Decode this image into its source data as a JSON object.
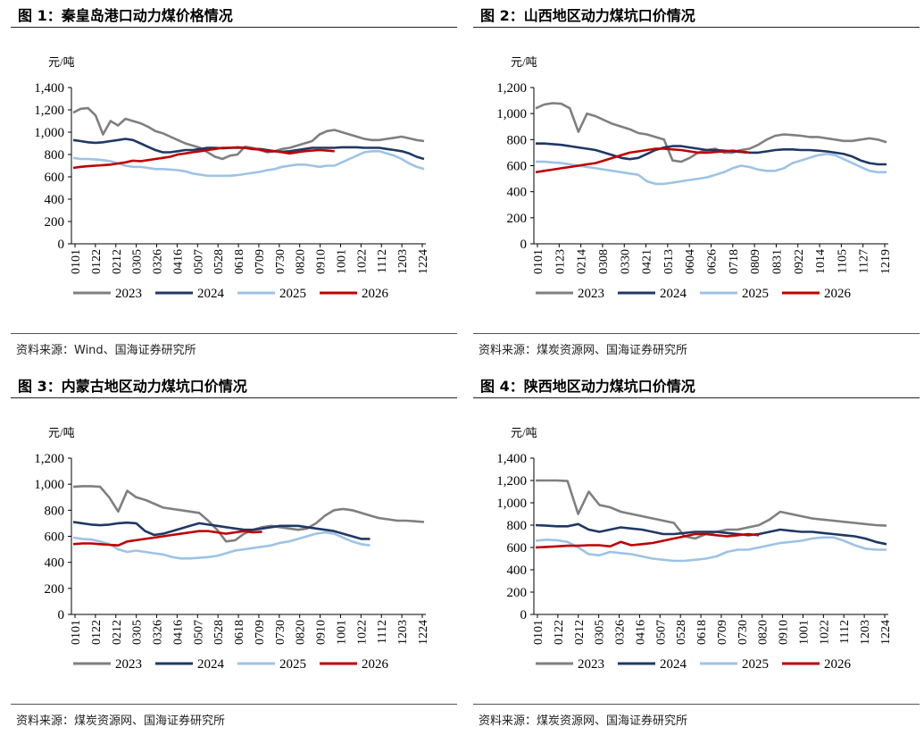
{
  "panels": [
    {
      "title": "图 1：秦皇岛港口动力煤价格情况",
      "source": "资料来源：Wind、国海证券研究所",
      "chart_data": {
        "type": "line",
        "unit": "元/吨",
        "ylim": [
          0,
          1400
        ],
        "yticks": [
          "0",
          "200",
          "400",
          "600",
          "800",
          "1,000",
          "1,200",
          "1,400"
        ],
        "x_labels": [
          "0101",
          "0122",
          "0212",
          "0305",
          "0326",
          "0416",
          "0507",
          "0528",
          "0618",
          "0709",
          "0730",
          "0820",
          "0910",
          "1001",
          "1022",
          "1112",
          "1203",
          "1224"
        ],
        "legend_position": "bottom",
        "series": [
          {
            "name": "2023",
            "color": "#7f7f7f",
            "values": [
              1175,
              1210,
              1215,
              1150,
              980,
              1100,
              1060,
              1120,
              1100,
              1080,
              1050,
              1010,
              990,
              960,
              930,
              900,
              880,
              860,
              820,
              780,
              760,
              790,
              800,
              870,
              860,
              840,
              820,
              830,
              850,
              860,
              880,
              900,
              920,
              980,
              1010,
              1020,
              1000,
              980,
              960,
              940,
              930,
              930,
              940,
              950,
              960,
              945,
              930,
              920
            ]
          },
          {
            "name": "2024",
            "color": "#1f3864",
            "values": [
              930,
              920,
              910,
              905,
              910,
              920,
              930,
              940,
              930,
              900,
              870,
              840,
              820,
              820,
              830,
              840,
              840,
              850,
              860,
              860,
              855,
              860,
              860,
              860,
              850,
              850,
              840,
              830,
              825,
              830,
              840,
              850,
              860,
              860,
              860,
              860,
              865,
              865,
              865,
              860,
              860,
              860,
              850,
              840,
              830,
              810,
              780,
              760
            ]
          },
          {
            "name": "2025",
            "color": "#9dc3e6",
            "values": [
              770,
              760,
              760,
              755,
              750,
              740,
              720,
              700,
              690,
              690,
              680,
              670,
              670,
              665,
              660,
              650,
              630,
              620,
              610,
              610,
              610,
              610,
              615,
              625,
              635,
              645,
              660,
              670,
              690,
              700,
              710,
              710,
              700,
              690,
              700,
              700,
              730,
              760,
              790,
              820,
              830,
              830,
              810,
              790,
              760,
              720,
              690,
              670
            ]
          },
          {
            "name": "2026",
            "color": "#c00000",
            "values": [
              680,
              690,
              695,
              700,
              705,
              710,
              720,
              730,
              745,
              740,
              750,
              760,
              770,
              780,
              800,
              810,
              820,
              830,
              840,
              850,
              860,
              860,
              865,
              860,
              850,
              845,
              830,
              830,
              820,
              810,
              820,
              830,
              835,
              840,
              835,
              830
            ]
          }
        ]
      }
    },
    {
      "title": "图 2：山西地区动力煤坑口价情况",
      "source": "资料来源：煤炭资源网、国海证券研究所",
      "chart_data": {
        "type": "line",
        "unit": "元/吨",
        "ylim": [
          0,
          1200
        ],
        "yticks": [
          "0",
          "200",
          "400",
          "600",
          "800",
          "1,000",
          "1,200"
        ],
        "x_labels": [
          "0101",
          "0123",
          "0214",
          "0308",
          "0330",
          "0421",
          "0513",
          "0604",
          "0626",
          "0718",
          "0809",
          "0831",
          "0922",
          "1014",
          "1105",
          "1127",
          "1219"
        ],
        "legend_position": "bottom",
        "series": [
          {
            "name": "2023",
            "color": "#7f7f7f",
            "values": [
              1040,
              1070,
              1080,
              1075,
              1040,
              860,
              1000,
              980,
              950,
              920,
              900,
              880,
              850,
              840,
              820,
              800,
              640,
              630,
              660,
              700,
              720,
              730,
              700,
              700,
              720,
              730,
              760,
              800,
              830,
              840,
              835,
              830,
              820,
              820,
              810,
              800,
              790,
              790,
              800,
              810,
              800,
              780
            ]
          },
          {
            "name": "2024",
            "color": "#1f3864",
            "values": [
              770,
              770,
              765,
              760,
              750,
              740,
              730,
              720,
              700,
              680,
              660,
              650,
              660,
              690,
              720,
              740,
              750,
              750,
              740,
              730,
              720,
              720,
              715,
              710,
              705,
              700,
              700,
              710,
              720,
              725,
              725,
              720,
              720,
              715,
              710,
              700,
              690,
              670,
              640,
              620,
              610,
              610
            ]
          },
          {
            "name": "2025",
            "color": "#9dc3e6",
            "values": [
              630,
              630,
              625,
              620,
              610,
              600,
              590,
              580,
              570,
              560,
              550,
              540,
              530,
              480,
              460,
              460,
              470,
              480,
              490,
              500,
              510,
              530,
              550,
              580,
              600,
              590,
              570,
              560,
              560,
              580,
              620,
              640,
              660,
              680,
              690,
              680,
              650,
              620,
              590,
              560,
              550,
              550
            ]
          },
          {
            "name": "2026",
            "color": "#c00000",
            "values": [
              550,
              560,
              570,
              580,
              590,
              600,
              610,
              620,
              640,
              660,
              680,
              700,
              710,
              720,
              730,
              730,
              725,
              720,
              710,
              700,
              700,
              705,
              710,
              715,
              710,
              700
            ]
          }
        ]
      }
    },
    {
      "title": "图 3：内蒙古地区动力煤坑口价情况",
      "source": "资料来源：煤炭资源网、国海证券研究所",
      "chart_data": {
        "type": "line",
        "unit": "元/吨",
        "ylim": [
          0,
          1200
        ],
        "yticks": [
          "0",
          "200",
          "400",
          "600",
          "800",
          "1,000",
          "1,200"
        ],
        "x_labels": [
          "0101",
          "0122",
          "0212",
          "0305",
          "0326",
          "0416",
          "0507",
          "0528",
          "0618",
          "0709",
          "0730",
          "0820",
          "0910",
          "1001",
          "1022",
          "1112",
          "1203",
          "1224"
        ],
        "legend_position": "bottom",
        "series": [
          {
            "name": "2023",
            "color": "#7f7f7f",
            "values": [
              980,
              985,
              985,
              980,
              900,
              790,
              950,
              900,
              880,
              850,
              820,
              810,
              800,
              790,
              780,
              720,
              650,
              560,
              570,
              620,
              650,
              670,
              680,
              670,
              660,
              650,
              660,
              700,
              760,
              800,
              810,
              800,
              780,
              760,
              740,
              730,
              720,
              720,
              715,
              710
            ]
          },
          {
            "name": "2024",
            "color": "#1f3864",
            "values": [
              710,
              700,
              690,
              685,
              690,
              700,
              705,
              700,
              640,
              610,
              620,
              640,
              660,
              680,
              700,
              690,
              680,
              670,
              660,
              650,
              650,
              660,
              670,
              680,
              680,
              680,
              670,
              660,
              650,
              640,
              620,
              600,
              580,
              580
            ]
          },
          {
            "name": "2025",
            "color": "#9dc3e6",
            "values": [
              590,
              580,
              575,
              560,
              540,
              500,
              480,
              490,
              480,
              470,
              460,
              440,
              430,
              430,
              435,
              440,
              450,
              470,
              490,
              500,
              510,
              520,
              530,
              550,
              560,
              580,
              600,
              620,
              630,
              620,
              590,
              560,
              540,
              530
            ]
          },
          {
            "name": "2026",
            "color": "#c00000",
            "values": [
              540,
              545,
              545,
              540,
              535,
              530,
              560,
              570,
              580,
              590,
              600,
              610,
              620,
              630,
              640,
              640,
              630,
              620,
              630,
              640,
              630,
              635
            ]
          }
        ]
      }
    },
    {
      "title": "图 4：陕西地区动力煤坑口价情况",
      "source": "资料来源：煤炭资源网、国海证券研究所",
      "chart_data": {
        "type": "line",
        "unit": "元/吨",
        "ylim": [
          0,
          1400
        ],
        "yticks": [
          "0",
          "200",
          "400",
          "600",
          "800",
          "1,000",
          "1,200",
          "1,400"
        ],
        "x_labels": [
          "0101",
          "0122",
          "0212",
          "0305",
          "0326",
          "0416",
          "0507",
          "0528",
          "0618",
          "0709",
          "0730",
          "0820",
          "0910",
          "1001",
          "1022",
          "1112",
          "1203",
          "1224"
        ],
        "legend_position": "bottom",
        "series": [
          {
            "name": "2023",
            "color": "#7f7f7f",
            "values": [
              1200,
              1200,
              1200,
              1195,
              900,
              1100,
              980,
              960,
              920,
              900,
              880,
              860,
              840,
              820,
              700,
              680,
              720,
              740,
              760,
              760,
              780,
              800,
              850,
              920,
              900,
              880,
              860,
              850,
              840,
              830,
              820,
              810,
              800,
              795
            ]
          },
          {
            "name": "2024",
            "color": "#1f3864",
            "values": [
              800,
              795,
              790,
              790,
              810,
              760,
              740,
              760,
              780,
              770,
              760,
              740,
              720,
              720,
              730,
              740,
              740,
              740,
              730,
              720,
              710,
              720,
              740,
              760,
              750,
              740,
              740,
              730,
              720,
              710,
              700,
              680,
              650,
              630
            ]
          },
          {
            "name": "2025",
            "color": "#9dc3e6",
            "values": [
              660,
              670,
              665,
              650,
              600,
              540,
              530,
              560,
              550,
              540,
              520,
              500,
              490,
              480,
              480,
              490,
              500,
              520,
              560,
              580,
              580,
              600,
              620,
              640,
              650,
              660,
              680,
              690,
              690,
              660,
              620,
              590,
              580,
              580
            ]
          },
          {
            "name": "2026",
            "color": "#c00000",
            "values": [
              600,
              605,
              610,
              615,
              615,
              620,
              620,
              610,
              650,
              620,
              630,
              640,
              660,
              680,
              700,
              720,
              720,
              710,
              700,
              710,
              720,
              710
            ]
          }
        ]
      }
    }
  ]
}
